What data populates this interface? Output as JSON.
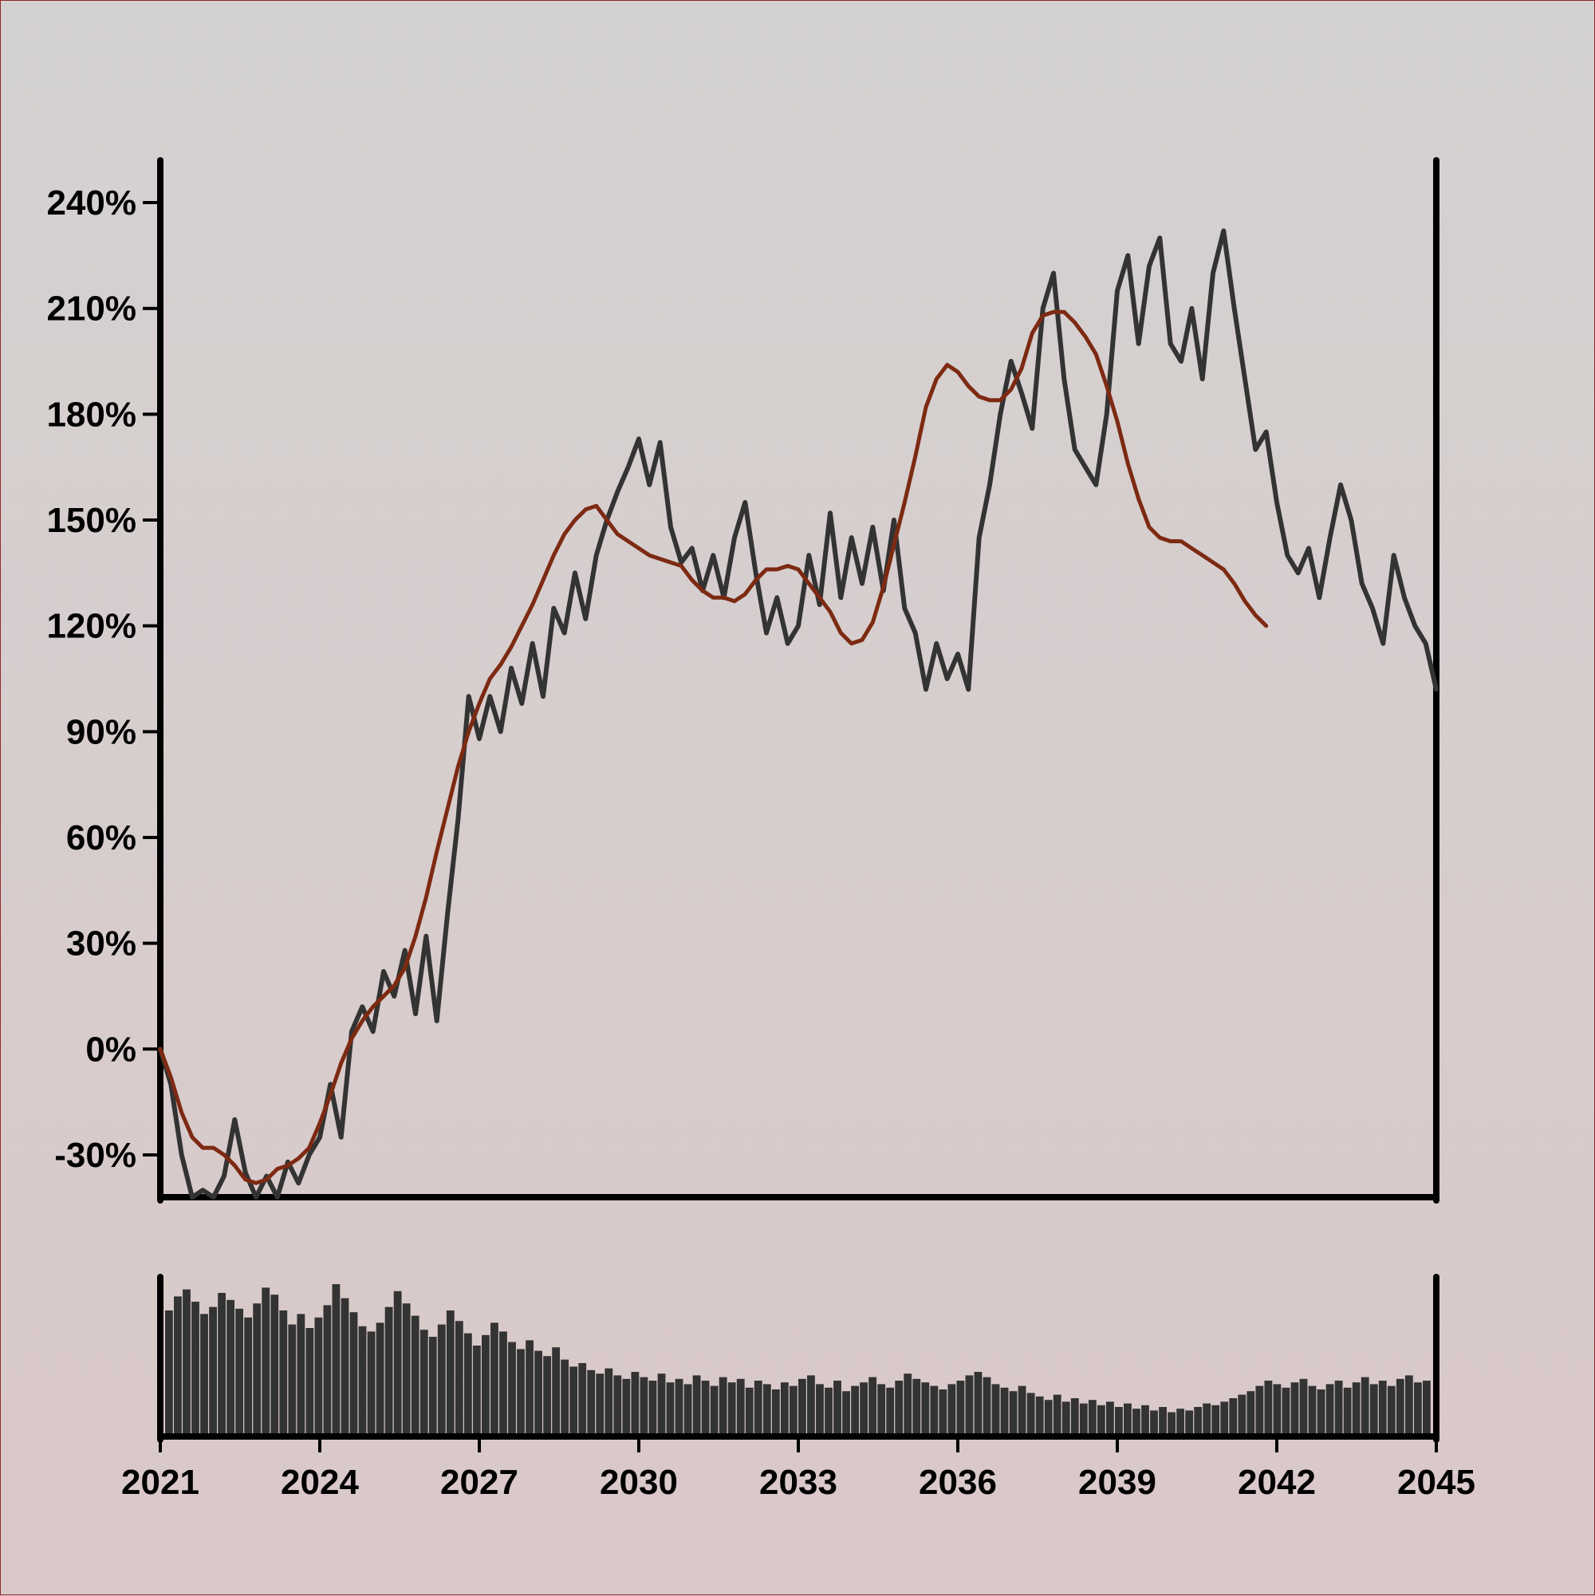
{
  "chart_data": {
    "type": "line",
    "x_axis": {
      "type": "date",
      "range": [
        2021,
        2045
      ],
      "ticks": [
        "2021",
        "2024",
        "2027",
        "2030",
        "2033",
        "2036",
        "2039",
        "2042",
        "2045"
      ]
    },
    "y_axis": {
      "unit": "%",
      "range": [
        -42,
        252
      ],
      "ticks": [
        -30,
        0,
        30,
        60,
        90,
        120,
        150,
        180,
        210,
        240
      ],
      "tick_labels": [
        "-30%",
        "0%",
        "30%",
        "60%",
        "90%",
        "120%",
        "150%",
        "180%",
        "210%",
        "240%"
      ]
    },
    "series": [
      {
        "style": "price",
        "color": "#333333",
        "points": [
          [
            2021.0,
            0
          ],
          [
            2021.2,
            -10
          ],
          [
            2021.4,
            -30
          ],
          [
            2021.6,
            -42
          ],
          [
            2021.8,
            -40
          ],
          [
            2022.0,
            -42
          ],
          [
            2022.2,
            -36
          ],
          [
            2022.4,
            -20
          ],
          [
            2022.6,
            -35
          ],
          [
            2022.8,
            -42
          ],
          [
            2023.0,
            -36
          ],
          [
            2023.2,
            -42
          ],
          [
            2023.4,
            -32
          ],
          [
            2023.6,
            -38
          ],
          [
            2023.8,
            -30
          ],
          [
            2024.0,
            -25
          ],
          [
            2024.2,
            -10
          ],
          [
            2024.4,
            -25
          ],
          [
            2024.6,
            5
          ],
          [
            2024.8,
            12
          ],
          [
            2025.0,
            5
          ],
          [
            2025.2,
            22
          ],
          [
            2025.4,
            15
          ],
          [
            2025.6,
            28
          ],
          [
            2025.8,
            10
          ],
          [
            2026.0,
            32
          ],
          [
            2026.2,
            8
          ],
          [
            2026.4,
            38
          ],
          [
            2026.6,
            65
          ],
          [
            2026.8,
            100
          ],
          [
            2027.0,
            88
          ],
          [
            2027.2,
            100
          ],
          [
            2027.4,
            90
          ],
          [
            2027.6,
            108
          ],
          [
            2027.8,
            98
          ],
          [
            2028.0,
            115
          ],
          [
            2028.2,
            100
          ],
          [
            2028.4,
            125
          ],
          [
            2028.6,
            118
          ],
          [
            2028.8,
            135
          ],
          [
            2029.0,
            122
          ],
          [
            2029.2,
            140
          ],
          [
            2029.4,
            150
          ],
          [
            2029.6,
            158
          ],
          [
            2029.8,
            165
          ],
          [
            2030.0,
            173
          ],
          [
            2030.2,
            160
          ],
          [
            2030.4,
            172
          ],
          [
            2030.6,
            148
          ],
          [
            2030.8,
            138
          ],
          [
            2031.0,
            142
          ],
          [
            2031.2,
            130
          ],
          [
            2031.4,
            140
          ],
          [
            2031.6,
            128
          ],
          [
            2031.8,
            145
          ],
          [
            2032.0,
            155
          ],
          [
            2032.2,
            135
          ],
          [
            2032.4,
            118
          ],
          [
            2032.6,
            128
          ],
          [
            2032.8,
            115
          ],
          [
            2033.0,
            120
          ],
          [
            2033.2,
            140
          ],
          [
            2033.4,
            126
          ],
          [
            2033.6,
            152
          ],
          [
            2033.8,
            128
          ],
          [
            2034.0,
            145
          ],
          [
            2034.2,
            132
          ],
          [
            2034.4,
            148
          ],
          [
            2034.6,
            130
          ],
          [
            2034.8,
            150
          ],
          [
            2035.0,
            125
          ],
          [
            2035.2,
            118
          ],
          [
            2035.4,
            102
          ],
          [
            2035.6,
            115
          ],
          [
            2035.8,
            105
          ],
          [
            2036.0,
            112
          ],
          [
            2036.2,
            102
          ],
          [
            2036.4,
            145
          ],
          [
            2036.6,
            160
          ],
          [
            2036.8,
            180
          ],
          [
            2037.0,
            195
          ],
          [
            2037.2,
            186
          ],
          [
            2037.4,
            176
          ],
          [
            2037.6,
            210
          ],
          [
            2037.8,
            220
          ],
          [
            2038.0,
            190
          ],
          [
            2038.2,
            170
          ],
          [
            2038.4,
            165
          ],
          [
            2038.6,
            160
          ],
          [
            2038.8,
            180
          ],
          [
            2039.0,
            215
          ],
          [
            2039.2,
            225
          ],
          [
            2039.4,
            200
          ],
          [
            2039.6,
            222
          ],
          [
            2039.8,
            230
          ],
          [
            2040.0,
            200
          ],
          [
            2040.2,
            195
          ],
          [
            2040.4,
            210
          ],
          [
            2040.6,
            190
          ],
          [
            2040.8,
            220
          ],
          [
            2041.0,
            232
          ],
          [
            2041.2,
            210
          ],
          [
            2041.4,
            190
          ],
          [
            2041.6,
            170
          ],
          [
            2041.8,
            175
          ],
          [
            2042.0,
            155
          ],
          [
            2042.2,
            140
          ],
          [
            2042.4,
            135
          ],
          [
            2042.6,
            142
          ],
          [
            2042.8,
            128
          ],
          [
            2043.0,
            145
          ],
          [
            2043.2,
            160
          ],
          [
            2043.4,
            150
          ],
          [
            2043.6,
            132
          ],
          [
            2043.8,
            125
          ],
          [
            2044.0,
            115
          ],
          [
            2044.2,
            140
          ],
          [
            2044.4,
            128
          ],
          [
            2044.6,
            120
          ],
          [
            2044.8,
            115
          ],
          [
            2045.0,
            102
          ]
        ]
      },
      {
        "style": "moving_average",
        "color": "#7d2a12",
        "points": [
          [
            2021.0,
            0
          ],
          [
            2021.2,
            -8
          ],
          [
            2021.4,
            -18
          ],
          [
            2021.6,
            -25
          ],
          [
            2021.8,
            -28
          ],
          [
            2022.0,
            -28
          ],
          [
            2022.2,
            -30
          ],
          [
            2022.4,
            -33
          ],
          [
            2022.6,
            -37
          ],
          [
            2022.8,
            -38
          ],
          [
            2023.0,
            -37
          ],
          [
            2023.2,
            -34
          ],
          [
            2023.4,
            -33
          ],
          [
            2023.6,
            -31
          ],
          [
            2023.8,
            -28
          ],
          [
            2024.0,
            -21
          ],
          [
            2024.2,
            -13
          ],
          [
            2024.4,
            -4
          ],
          [
            2024.6,
            3
          ],
          [
            2024.8,
            8
          ],
          [
            2025.0,
            12
          ],
          [
            2025.2,
            15
          ],
          [
            2025.4,
            18
          ],
          [
            2025.6,
            23
          ],
          [
            2025.8,
            32
          ],
          [
            2026.0,
            43
          ],
          [
            2026.2,
            56
          ],
          [
            2026.4,
            68
          ],
          [
            2026.6,
            80
          ],
          [
            2026.8,
            90
          ],
          [
            2027.0,
            98
          ],
          [
            2027.2,
            105
          ],
          [
            2027.4,
            109
          ],
          [
            2027.6,
            114
          ],
          [
            2027.8,
            120
          ],
          [
            2028.0,
            126
          ],
          [
            2028.2,
            133
          ],
          [
            2028.4,
            140
          ],
          [
            2028.6,
            146
          ],
          [
            2028.8,
            150
          ],
          [
            2029.0,
            153
          ],
          [
            2029.2,
            154
          ],
          [
            2029.4,
            150
          ],
          [
            2029.6,
            146
          ],
          [
            2029.8,
            144
          ],
          [
            2030.0,
            142
          ],
          [
            2030.2,
            140
          ],
          [
            2030.4,
            139
          ],
          [
            2030.6,
            138
          ],
          [
            2030.8,
            137
          ],
          [
            2031.0,
            133
          ],
          [
            2031.2,
            130
          ],
          [
            2031.4,
            128
          ],
          [
            2031.6,
            128
          ],
          [
            2031.8,
            127
          ],
          [
            2032.0,
            129
          ],
          [
            2032.2,
            133
          ],
          [
            2032.4,
            136
          ],
          [
            2032.6,
            136
          ],
          [
            2032.8,
            137
          ],
          [
            2033.0,
            136
          ],
          [
            2033.2,
            132
          ],
          [
            2033.4,
            128
          ],
          [
            2033.6,
            124
          ],
          [
            2033.8,
            118
          ],
          [
            2034.0,
            115
          ],
          [
            2034.2,
            116
          ],
          [
            2034.4,
            121
          ],
          [
            2034.6,
            131
          ],
          [
            2034.8,
            143
          ],
          [
            2035.0,
            155
          ],
          [
            2035.2,
            168
          ],
          [
            2035.4,
            182
          ],
          [
            2035.6,
            190
          ],
          [
            2035.8,
            194
          ],
          [
            2036.0,
            192
          ],
          [
            2036.2,
            188
          ],
          [
            2036.4,
            185
          ],
          [
            2036.6,
            184
          ],
          [
            2036.8,
            184
          ],
          [
            2037.0,
            187
          ],
          [
            2037.2,
            193
          ],
          [
            2037.4,
            203
          ],
          [
            2037.6,
            208
          ],
          [
            2037.8,
            209
          ],
          [
            2038.0,
            209
          ],
          [
            2038.2,
            206
          ],
          [
            2038.4,
            202
          ],
          [
            2038.6,
            197
          ],
          [
            2038.8,
            188
          ],
          [
            2039.0,
            178
          ],
          [
            2039.2,
            166
          ],
          [
            2039.4,
            156
          ],
          [
            2039.6,
            148
          ],
          [
            2039.8,
            145
          ],
          [
            2040.0,
            144
          ],
          [
            2040.2,
            144
          ],
          [
            2040.4,
            142
          ],
          [
            2040.6,
            140
          ],
          [
            2040.8,
            138
          ],
          [
            2041.0,
            136
          ],
          [
            2041.2,
            132
          ],
          [
            2041.4,
            127
          ],
          [
            2041.6,
            123
          ],
          [
            2041.8,
            120
          ]
        ]
      }
    ],
    "volume": {
      "type": "bar",
      "has_axis_labels": false,
      "color": "#333333",
      "values": [
        70,
        78,
        82,
        75,
        68,
        72,
        80,
        76,
        71,
        66,
        74,
        83,
        79,
        70,
        62,
        68,
        60,
        66,
        73,
        85,
        77,
        69,
        61,
        58,
        63,
        72,
        81,
        74,
        67,
        59,
        55,
        62,
        70,
        64,
        57,
        50,
        56,
        63,
        58,
        52,
        48,
        53,
        47,
        44,
        49,
        42,
        38,
        40,
        36,
        34,
        37,
        33,
        31,
        35,
        32,
        30,
        34,
        29,
        31,
        28,
        33,
        30,
        27,
        32,
        29,
        31,
        26,
        30,
        28,
        25,
        29,
        27,
        31,
        33,
        28,
        26,
        30,
        24,
        27,
        29,
        32,
        28,
        26,
        30,
        34,
        31,
        29,
        27,
        25,
        28,
        30,
        33,
        35,
        32,
        28,
        26,
        24,
        27,
        23,
        21,
        19,
        22,
        18,
        20,
        17,
        19,
        16,
        18,
        15,
        17,
        14,
        16,
        13,
        15,
        12,
        14,
        13,
        15,
        17,
        16,
        18,
        20,
        22,
        24,
        27,
        30,
        28,
        26,
        29,
        31,
        27,
        25,
        28,
        30,
        26,
        29,
        32,
        28,
        30,
        27,
        31,
        33,
        29,
        30
      ]
    }
  }
}
